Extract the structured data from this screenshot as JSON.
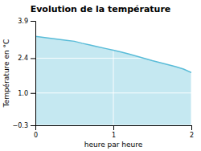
{
  "chart_data": {
    "type": "area",
    "title": "Evolution de la température",
    "x_label": "heure par heure",
    "y_label": "Température en °C",
    "x": [
      0,
      0.1,
      0.2,
      0.3,
      0.4,
      0.5,
      0.6,
      0.7,
      0.8,
      0.9,
      1.0,
      1.1,
      1.2,
      1.3,
      1.4,
      1.5,
      1.6,
      1.7,
      1.8,
      1.9,
      2.0
    ],
    "values": [
      3.28,
      3.24,
      3.2,
      3.16,
      3.12,
      3.08,
      3.0,
      2.93,
      2.86,
      2.79,
      2.72,
      2.65,
      2.57,
      2.48,
      2.39,
      2.3,
      2.22,
      2.14,
      2.06,
      1.96,
      1.82
    ],
    "color": "#5abcd8",
    "xlim": [
      0,
      2
    ],
    "ylim": [
      -0.3,
      3.9
    ],
    "xticks": [
      0,
      1,
      2
    ],
    "yticks": [
      {
        "value": -0.3,
        "label": "−0.3"
      },
      {
        "value": 1.0,
        "label": "1.0"
      },
      {
        "value": 2.4,
        "label": "2.4"
      },
      {
        "value": 3.9,
        "label": "3.9"
      }
    ],
    "grid": true
  }
}
